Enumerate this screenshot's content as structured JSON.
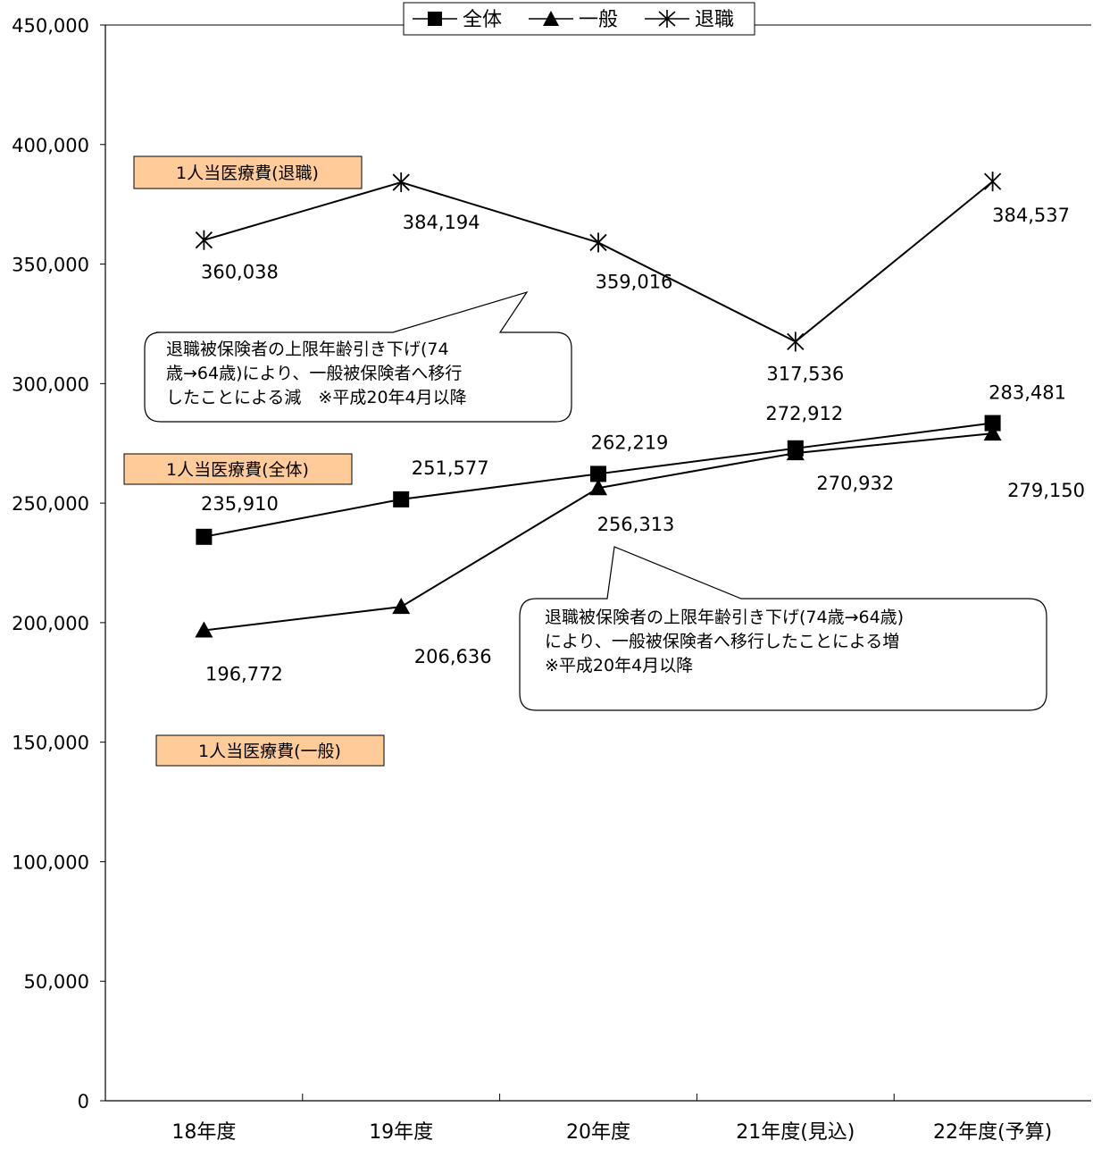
{
  "chart_data": {
    "type": "line",
    "categories": [
      "18年度",
      "19年度",
      "20年度",
      "21年度(見込)",
      "22年度(予算)"
    ],
    "ylim": [
      0,
      450000
    ],
    "yticks": [
      "0",
      "50,000",
      "100,000",
      "150,000",
      "200,000",
      "250,000",
      "300,000",
      "350,000",
      "400,000",
      "450,000"
    ],
    "legend_position": "top",
    "series": [
      {
        "name": "全体",
        "marker": "square",
        "values": [
          235910,
          251577,
          262219,
          272912,
          283481
        ],
        "labels": [
          "235,910",
          "251,577",
          "262,219",
          "272,912",
          "283,481"
        ]
      },
      {
        "name": "一般",
        "marker": "triangle",
        "values": [
          196772,
          206636,
          256313,
          270932,
          279150
        ],
        "labels": [
          "196,772",
          "206,636",
          "256,313",
          "270,932",
          "279,150"
        ]
      },
      {
        "name": "退職",
        "marker": "asterisk",
        "values": [
          360038,
          384194,
          359016,
          317536,
          384537
        ],
        "labels": [
          "360,038",
          "384,194",
          "359,016",
          "317,536",
          "384,537"
        ]
      }
    ],
    "series_labels": {
      "retired": "1人当医療費(退職)",
      "total": "1人当医療費(全体)",
      "general": "1人当医療費(一般)"
    },
    "annotations": {
      "decrease": [
        "退職被保険者の上限年齢引き下げ(74",
        "歳→64歳)により、一般被保険者へ移行",
        "したことによる減　※平成20年4月以降"
      ],
      "increase": [
        "退職被保険者の上限年齢引き下げ(74歳→64歳)",
        "により、一般被保険者へ移行したことによる増",
        "※平成20年4月以降"
      ]
    },
    "colors": {
      "line": "#000000",
      "label_box": "#FFCC99"
    }
  }
}
